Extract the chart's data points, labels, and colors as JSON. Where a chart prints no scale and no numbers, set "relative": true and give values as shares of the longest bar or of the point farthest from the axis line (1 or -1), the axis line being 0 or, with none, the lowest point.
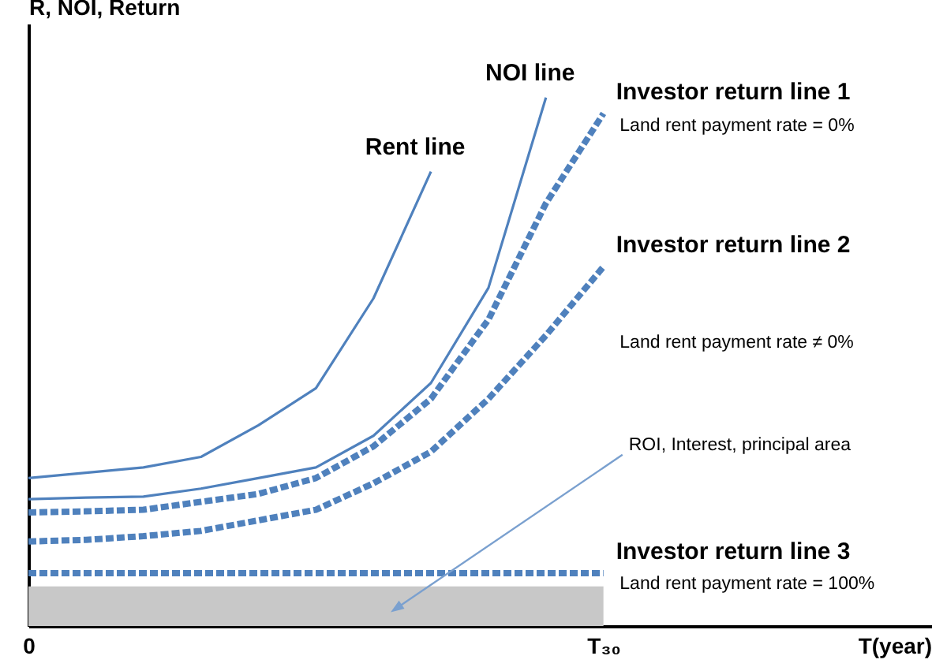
{
  "chart_data": {
    "type": "line",
    "relative": true,
    "ylabel": "R, NOI, Return",
    "xlabel": "T(year)",
    "categories": [
      "0",
      null,
      null,
      null,
      null,
      null,
      null,
      null,
      null,
      null,
      "T₃₀",
      null,
      null,
      null,
      null,
      null
    ],
    "series": [
      {
        "name": "Rent line",
        "color": "#4f81bd",
        "line_style": "solid",
        "values": [
          0.28,
          0.29,
          0.3,
          0.32,
          0.38,
          0.45,
          0.62,
          0.86,
          null,
          null,
          null,
          null,
          null,
          null,
          null,
          null
        ]
      },
      {
        "name": "NOI line",
        "color": "#4f81bd",
        "line_style": "solid",
        "values": [
          0.24,
          0.243,
          0.245,
          0.26,
          0.28,
          0.3,
          0.36,
          0.46,
          0.64,
          1.0,
          null,
          null,
          null,
          null,
          null,
          null
        ]
      },
      {
        "name": "Investor return line 1",
        "color": "#4f81bd",
        "line_style": "dotted",
        "values": [
          0.215,
          0.217,
          0.22,
          0.235,
          0.25,
          0.28,
          0.34,
          0.43,
          0.58,
          0.8,
          0.97,
          null,
          null,
          null,
          null,
          null
        ]
      },
      {
        "name": "Investor return line 2",
        "color": "#4f81bd",
        "line_style": "dotted",
        "values": [
          0.16,
          0.163,
          0.17,
          0.18,
          0.2,
          0.22,
          0.27,
          0.33,
          0.43,
          0.55,
          0.68,
          null,
          null,
          null,
          null,
          null
        ]
      },
      {
        "name": "Investor return line 3",
        "color": "#4f81bd",
        "line_style": "dotted",
        "values": [
          0.1,
          0.1,
          0.1,
          0.1,
          0.1,
          0.1,
          0.1,
          0.1,
          0.1,
          0.1,
          0.1,
          null,
          null,
          null,
          null,
          null
        ]
      },
      {
        "type": "area",
        "color": "#c8c8c8",
        "values": [
          0.075,
          0.075,
          0.075,
          0.075,
          0.075,
          0.075,
          0.075,
          0.075,
          0.075,
          0.075,
          0.075,
          null,
          null,
          null,
          null,
          null
        ]
      }
    ],
    "annotations": [
      "Land rent payment rate = 0%",
      "Land rent payment rate ≠ 0%",
      "ROI, Interest, principal area",
      "Land rent payment rate = 100%"
    ],
    "grid": false
  }
}
